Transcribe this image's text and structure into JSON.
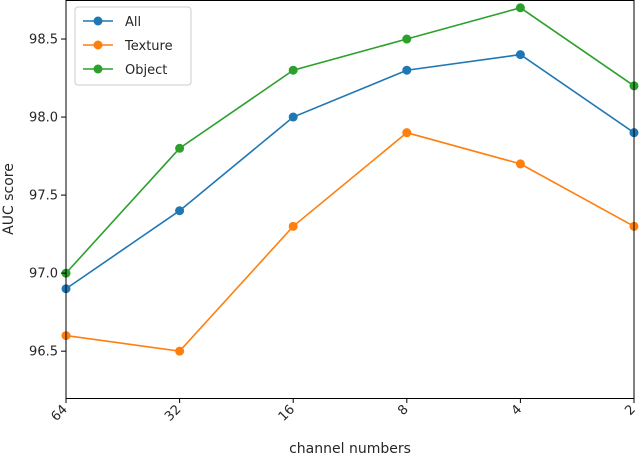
{
  "chart_data": {
    "type": "line",
    "categories": [
      "64",
      "32",
      "16",
      "8",
      "4",
      "2"
    ],
    "xlabel": "channel numbers",
    "ylabel": "AUC score",
    "ylim": [
      96.2,
      98.75
    ],
    "yticks": [
      96.5,
      97.0,
      97.5,
      98.0,
      98.5
    ],
    "ytick_labels": [
      "96.5",
      "97.0",
      "97.5",
      "98.0",
      "98.5"
    ],
    "grid": false,
    "legend_position": "top-left",
    "series": [
      {
        "name": "All",
        "color": "#1f77b4",
        "values": [
          96.9,
          97.4,
          98.0,
          98.3,
          98.4,
          97.9
        ]
      },
      {
        "name": "Texture",
        "color": "#ff7f0e",
        "values": [
          96.6,
          96.5,
          97.3,
          97.9,
          97.7,
          97.3
        ]
      },
      {
        "name": "Object",
        "color": "#2ca02c",
        "values": [
          97.0,
          97.8,
          98.3,
          98.5,
          98.7,
          98.2
        ]
      }
    ]
  }
}
